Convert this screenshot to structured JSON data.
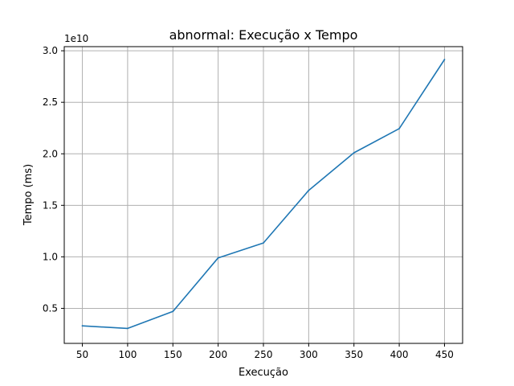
{
  "chart_data": {
    "type": "line",
    "title": "abnormal: Execução x Tempo",
    "xlabel": "Execução",
    "ylabel": "Tempo (ms)",
    "y_offset_label": "1e10",
    "x": [
      50,
      100,
      150,
      200,
      250,
      300,
      350,
      400,
      450
    ],
    "series": [
      {
        "values": [
          3300000000.0,
          3050000000.0,
          4700000000.0,
          9900000000.0,
          11350000000.0,
          16450000000.0,
          20100000000.0,
          22450000000.0,
          29150000000.0
        ],
        "color": "#1f77b4"
      }
    ],
    "xlim": [
      30,
      470
    ],
    "ylim": [
      1600000000.0,
      30400000000.0
    ],
    "x_ticks": [
      50,
      100,
      150,
      200,
      250,
      300,
      350,
      400,
      450
    ],
    "x_tick_labels": [
      "50",
      "100",
      "150",
      "200",
      "250",
      "300",
      "350",
      "400",
      "450"
    ],
    "y_ticks": [
      5000000000.0,
      10000000000.0,
      15000000000.0,
      20000000000.0,
      25000000000.0,
      30000000000.0
    ],
    "y_tick_labels": [
      "0.5",
      "1.0",
      "1.5",
      "2.0",
      "2.5",
      "3.0"
    ],
    "grid": true,
    "legend": "none"
  }
}
